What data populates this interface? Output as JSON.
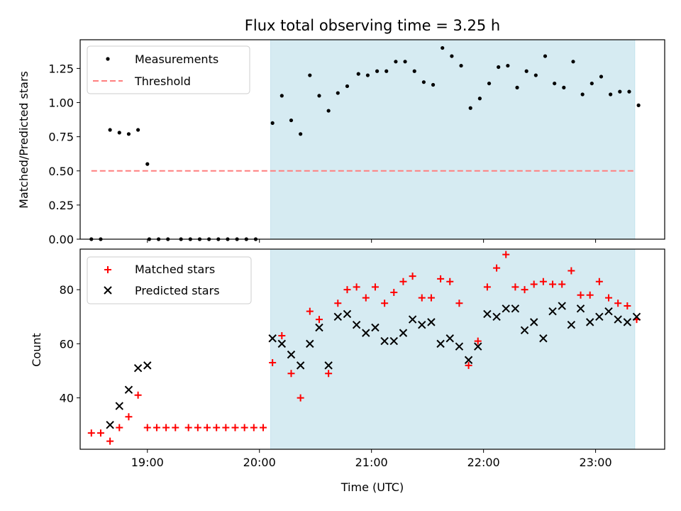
{
  "chart_data": [
    {
      "type": "scatter",
      "title": "Flux total observing time = 3.25 h",
      "ylabel": "Matched/Predicted stars",
      "xlabel": "",
      "xlim": [
        "18:24",
        "23:37"
      ],
      "ylim": [
        0,
        1.46
      ],
      "x_ticks": [
        "19:00",
        "20:00",
        "21:00",
        "22:00",
        "23:00"
      ],
      "y_ticks": [
        "0.00",
        "0.25",
        "0.50",
        "0.75",
        "1.00",
        "1.25"
      ],
      "shaded_region": {
        "start": "20:06",
        "end": "23:21",
        "color": "#add8e6"
      },
      "threshold": {
        "name": "Threshold",
        "y": 0.5,
        "x_range": [
          "18:30",
          "23:21"
        ],
        "color": "#ff7f7f",
        "style": "dashed"
      },
      "legend": {
        "placement": "top-left",
        "entries": [
          "Measurements",
          "Threshold"
        ]
      },
      "series": [
        {
          "name": "Measurements",
          "color": "#000000",
          "marker": "dot",
          "points": [
            [
              "18:30",
              0
            ],
            [
              "18:35",
              0
            ],
            [
              "18:40",
              0.8
            ],
            [
              "18:45",
              0.78
            ],
            [
              "18:50",
              0.77
            ],
            [
              "18:55",
              0.8
            ],
            [
              "19:00",
              0.55
            ],
            [
              "19:01",
              0
            ],
            [
              "19:06",
              0
            ],
            [
              "19:11",
              0
            ],
            [
              "19:18",
              0
            ],
            [
              "19:23",
              0
            ],
            [
              "19:28",
              0
            ],
            [
              "19:33",
              0
            ],
            [
              "19:38",
              0
            ],
            [
              "19:43",
              0
            ],
            [
              "19:48",
              0
            ],
            [
              "19:53",
              0
            ],
            [
              "19:58",
              0
            ],
            [
              "20:07",
              0.85
            ],
            [
              "20:12",
              1.05
            ],
            [
              "20:17",
              0.87
            ],
            [
              "20:22",
              0.77
            ],
            [
              "20:27",
              1.2
            ],
            [
              "20:32",
              1.05
            ],
            [
              "20:37",
              0.94
            ],
            [
              "20:42",
              1.07
            ],
            [
              "20:47",
              1.12
            ],
            [
              "20:53",
              1.21
            ],
            [
              "20:58",
              1.2
            ],
            [
              "21:03",
              1.23
            ],
            [
              "21:08",
              1.23
            ],
            [
              "21:13",
              1.3
            ],
            [
              "21:18",
              1.3
            ],
            [
              "21:23",
              1.23
            ],
            [
              "21:28",
              1.15
            ],
            [
              "21:33",
              1.13
            ],
            [
              "21:38",
              1.4
            ],
            [
              "21:43",
              1.34
            ],
            [
              "21:48",
              1.27
            ],
            [
              "21:53",
              0.96
            ],
            [
              "21:58",
              1.03
            ],
            [
              "22:03",
              1.14
            ],
            [
              "22:08",
              1.26
            ],
            [
              "22:13",
              1.27
            ],
            [
              "22:18",
              1.11
            ],
            [
              "22:23",
              1.23
            ],
            [
              "22:28",
              1.2
            ],
            [
              "22:33",
              1.34
            ],
            [
              "22:38",
              1.14
            ],
            [
              "22:43",
              1.11
            ],
            [
              "22:48",
              1.3
            ],
            [
              "22:53",
              1.06
            ],
            [
              "22:58",
              1.14
            ],
            [
              "23:03",
              1.19
            ],
            [
              "23:08",
              1.06
            ],
            [
              "23:13",
              1.08
            ],
            [
              "23:18",
              1.08
            ],
            [
              "23:23",
              0.98
            ]
          ]
        }
      ]
    },
    {
      "type": "scatter",
      "title": "",
      "ylabel": "Count",
      "xlabel": "Time (UTC)",
      "xlim": [
        "18:24",
        "23:37"
      ],
      "ylim": [
        21,
        95
      ],
      "x_ticks": [
        "19:00",
        "20:00",
        "21:00",
        "22:00",
        "23:00"
      ],
      "y_ticks": [
        "40",
        "60",
        "80"
      ],
      "shaded_region": {
        "start": "20:06",
        "end": "23:21",
        "color": "#add8e6"
      },
      "legend": {
        "placement": "top-left",
        "entries": [
          "Matched stars",
          "Predicted stars"
        ]
      },
      "series": [
        {
          "name": "Matched stars",
          "color": "#ff0000",
          "marker": "plus",
          "points": [
            [
              "18:30",
              27
            ],
            [
              "18:35",
              27
            ],
            [
              "18:40",
              24
            ],
            [
              "18:45",
              29
            ],
            [
              "18:50",
              33
            ],
            [
              "18:55",
              41
            ],
            [
              "19:00",
              29
            ],
            [
              "19:05",
              29
            ],
            [
              "19:10",
              29
            ],
            [
              "19:15",
              29
            ],
            [
              "19:22",
              29
            ],
            [
              "19:27",
              29
            ],
            [
              "19:32",
              29
            ],
            [
              "19:37",
              29
            ],
            [
              "19:42",
              29
            ],
            [
              "19:47",
              29
            ],
            [
              "19:52",
              29
            ],
            [
              "19:57",
              29
            ],
            [
              "20:02",
              29
            ],
            [
              "20:07",
              53
            ],
            [
              "20:12",
              63
            ],
            [
              "20:17",
              49
            ],
            [
              "20:22",
              40
            ],
            [
              "20:27",
              72
            ],
            [
              "20:32",
              69
            ],
            [
              "20:37",
              49
            ],
            [
              "20:42",
              75
            ],
            [
              "20:47",
              80
            ],
            [
              "20:52",
              81
            ],
            [
              "20:57",
              77
            ],
            [
              "21:02",
              81
            ],
            [
              "21:07",
              75
            ],
            [
              "21:12",
              79
            ],
            [
              "21:17",
              83
            ],
            [
              "21:22",
              85
            ],
            [
              "21:27",
              77
            ],
            [
              "21:32",
              77
            ],
            [
              "21:37",
              84
            ],
            [
              "21:42",
              83
            ],
            [
              "21:47",
              75
            ],
            [
              "21:52",
              52
            ],
            [
              "21:57",
              61
            ],
            [
              "22:02",
              81
            ],
            [
              "22:07",
              88
            ],
            [
              "22:12",
              93
            ],
            [
              "22:17",
              81
            ],
            [
              "22:22",
              80
            ],
            [
              "22:27",
              82
            ],
            [
              "22:32",
              83
            ],
            [
              "22:37",
              82
            ],
            [
              "22:42",
              82
            ],
            [
              "22:47",
              87
            ],
            [
              "22:52",
              78
            ],
            [
              "22:57",
              78
            ],
            [
              "23:02",
              83
            ],
            [
              "23:07",
              77
            ],
            [
              "23:12",
              75
            ],
            [
              "23:17",
              74
            ],
            [
              "23:22",
              69
            ]
          ]
        },
        {
          "name": "Predicted stars",
          "color": "#000000",
          "marker": "x",
          "points": [
            [
              "18:40",
              30
            ],
            [
              "18:45",
              37
            ],
            [
              "18:50",
              43
            ],
            [
              "18:55",
              51
            ],
            [
              "19:00",
              52
            ],
            [
              "20:07",
              62
            ],
            [
              "20:12",
              60
            ],
            [
              "20:17",
              56
            ],
            [
              "20:22",
              52
            ],
            [
              "20:27",
              60
            ],
            [
              "20:32",
              66
            ],
            [
              "20:37",
              52
            ],
            [
              "20:42",
              70
            ],
            [
              "20:47",
              71
            ],
            [
              "20:52",
              67
            ],
            [
              "20:57",
              64
            ],
            [
              "21:02",
              66
            ],
            [
              "21:07",
              61
            ],
            [
              "21:12",
              61
            ],
            [
              "21:17",
              64
            ],
            [
              "21:22",
              69
            ],
            [
              "21:27",
              67
            ],
            [
              "21:32",
              68
            ],
            [
              "21:37",
              60
            ],
            [
              "21:42",
              62
            ],
            [
              "21:47",
              59
            ],
            [
              "21:52",
              54
            ],
            [
              "21:57",
              59
            ],
            [
              "22:02",
              71
            ],
            [
              "22:07",
              70
            ],
            [
              "22:12",
              73
            ],
            [
              "22:17",
              73
            ],
            [
              "22:22",
              65
            ],
            [
              "22:27",
              68
            ],
            [
              "22:32",
              62
            ],
            [
              "22:37",
              72
            ],
            [
              "22:42",
              74
            ],
            [
              "22:47",
              67
            ],
            [
              "22:52",
              73
            ],
            [
              "22:57",
              68
            ],
            [
              "23:02",
              70
            ],
            [
              "23:07",
              72
            ],
            [
              "23:12",
              69
            ],
            [
              "23:17",
              68
            ],
            [
              "23:22",
              70
            ]
          ]
        }
      ]
    }
  ]
}
